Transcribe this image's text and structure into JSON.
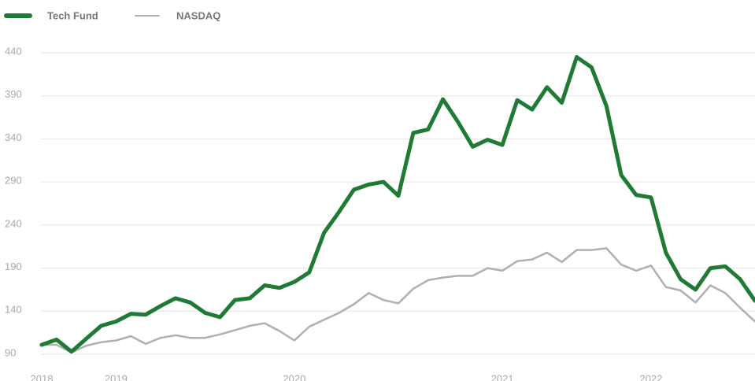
{
  "chart_data": {
    "type": "line",
    "categories": [
      "2018",
      null,
      null,
      null,
      null,
      "2019",
      null,
      null,
      null,
      null,
      null,
      null,
      null,
      null,
      null,
      null,
      null,
      "2020",
      null,
      null,
      null,
      null,
      null,
      null,
      null,
      null,
      null,
      null,
      null,
      null,
      null,
      "2021",
      null,
      null,
      null,
      null,
      null,
      null,
      null,
      null,
      null,
      "2022",
      null,
      null,
      null,
      null,
      null,
      null,
      null
    ],
    "series": [
      {
        "name": "Tech Fund",
        "color": "#1f7a33",
        "values": [
          101,
          107,
          93,
          108,
          123,
          128,
          137,
          136,
          146,
          155,
          150,
          138,
          133,
          153,
          155,
          170,
          167,
          174,
          185,
          231,
          255,
          281,
          287,
          290,
          274,
          347,
          351,
          386,
          360,
          331,
          339,
          333,
          385,
          374,
          400,
          382,
          435,
          423,
          378,
          298,
          275,
          272,
          208,
          177,
          165,
          190,
          192,
          177,
          152
        ]
      },
      {
        "name": "NASDAQ",
        "color": "#b0b0b0",
        "values": [
          101,
          101,
          92,
          100,
          104,
          106,
          111,
          102,
          109,
          112,
          109,
          109,
          113,
          118,
          123,
          126,
          117,
          106,
          122,
          130,
          138,
          148,
          161,
          153,
          149,
          166,
          176,
          179,
          181,
          181,
          190,
          187,
          198,
          200,
          208,
          197,
          211,
          211,
          213,
          194,
          187,
          193,
          168,
          164,
          150,
          170,
          161,
          144,
          128
        ]
      }
    ],
    "ylim": [
      90,
      440
    ],
    "yticks": [
      90,
      140,
      190,
      240,
      290,
      340,
      390,
      440
    ],
    "grid": true,
    "legend": "top-left"
  }
}
